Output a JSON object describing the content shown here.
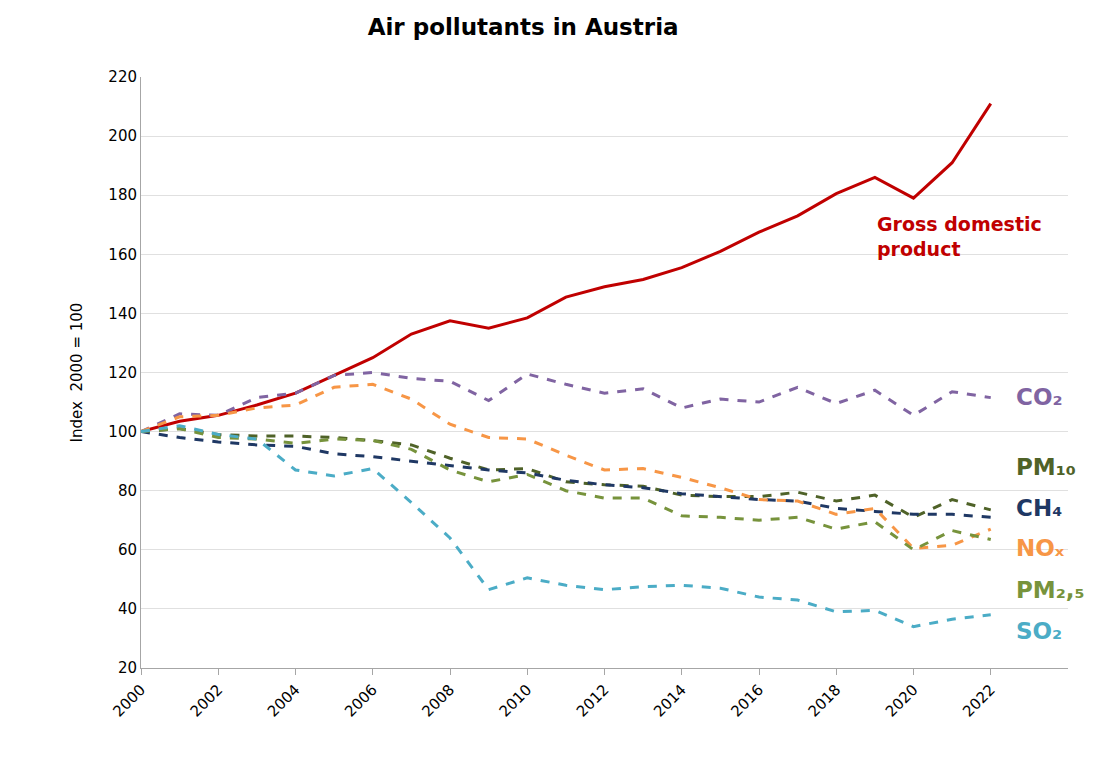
{
  "chart_data": {
    "type": "line",
    "title": "Air pollutants in Austria",
    "y_label": "Index  2000 = 100",
    "x": [
      2000,
      2001,
      2002,
      2003,
      2004,
      2005,
      2006,
      2007,
      2008,
      2009,
      2010,
      2011,
      2012,
      2013,
      2014,
      2015,
      2016,
      2017,
      2018,
      2019,
      2020,
      2021,
      2022
    ],
    "xlim": [
      2000,
      2024
    ],
    "xticks": [
      2000,
      2002,
      2004,
      2006,
      2008,
      2010,
      2012,
      2014,
      2016,
      2018,
      2020,
      2022
    ],
    "ylim": [
      20,
      220
    ],
    "yticks": [
      20,
      40,
      60,
      80,
      100,
      120,
      140,
      160,
      180,
      200,
      220
    ],
    "grid": true,
    "series": [
      {
        "name": "Gross domestic product",
        "color": "#c00000",
        "line_style": "solid",
        "values": [
          100,
          103.5,
          105.5,
          109,
          113,
          119,
          125,
          133,
          137.5,
          135,
          138.5,
          145.5,
          149,
          151.5,
          155.5,
          161,
          167.5,
          173,
          180.5,
          186,
          179,
          191,
          211
        ]
      },
      {
        "name": "CO₂",
        "color": "#8064a2",
        "line_style": "dashed",
        "values": [
          100,
          106,
          105.5,
          111.5,
          113,
          119,
          120,
          118,
          117,
          110.5,
          119.5,
          116,
          113,
          114.5,
          108,
          111,
          110,
          115,
          109.5,
          114,
          105.5,
          113.5,
          111.5
        ]
      },
      {
        "name": "PM₁₀",
        "color": "#4f6228",
        "line_style": "dashed",
        "values": [
          100,
          101,
          99,
          98.5,
          98.5,
          98,
          97,
          95.5,
          91,
          87,
          87.5,
          83,
          82,
          81.5,
          78.5,
          78,
          78,
          79.5,
          76.5,
          78.5,
          71,
          77,
          73.5
        ]
      },
      {
        "name": "CH₄",
        "color": "#1f3864",
        "line_style": "dashed",
        "values": [
          100,
          98,
          96.5,
          95.5,
          95,
          92.5,
          91.5,
          90,
          88.5,
          87,
          86,
          83.5,
          82,
          81,
          79,
          78,
          77,
          76.5,
          74,
          73,
          72,
          72,
          71
        ]
      },
      {
        "name": "NOₓ",
        "color": "#f79646",
        "line_style": "dashed",
        "values": [
          100,
          105,
          105.5,
          108,
          109,
          115,
          116,
          111,
          102.5,
          98,
          97.5,
          92,
          87,
          87.5,
          84.5,
          81,
          77,
          76.5,
          72,
          74,
          60.5,
          61.5,
          67
        ]
      },
      {
        "name": "PM₂,₅",
        "color": "#77933c",
        "line_style": "dashed",
        "values": [
          100,
          101,
          98,
          97.5,
          96,
          97.5,
          97,
          94,
          87,
          83,
          85.5,
          80,
          77.5,
          77.5,
          71.5,
          71,
          70,
          71,
          67,
          69.5,
          60,
          66.5,
          63.5
        ]
      },
      {
        "name": "SO₂",
        "color": "#4bacc6",
        "line_style": "dashed",
        "values": [
          100,
          102,
          99,
          97.5,
          87,
          85,
          87.5,
          76,
          64,
          46.5,
          50.5,
          48,
          46.5,
          47.5,
          48,
          47,
          44,
          43,
          39,
          39.5,
          34,
          36.5,
          38
        ]
      }
    ]
  }
}
